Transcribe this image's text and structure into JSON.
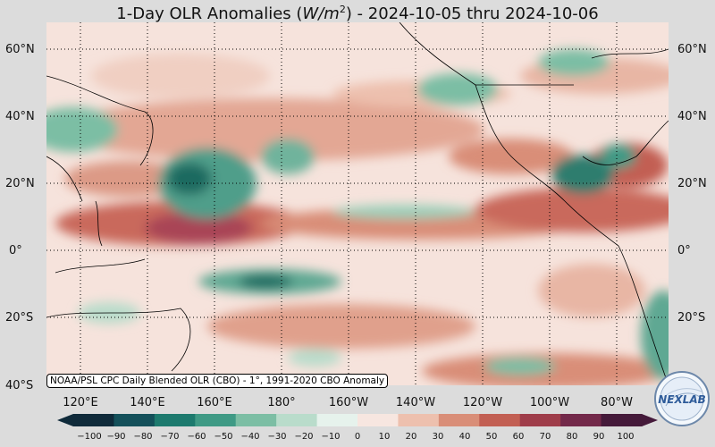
{
  "title": {
    "prefix": "1-Day OLR Anomalies (",
    "unit_base": "W/m",
    "unit_exp": "2",
    "suffix": ") - 2024-10-05 thru 2024-10-06"
  },
  "lat_labels": [
    "60°N",
    "40°N",
    "20°N",
    "0°",
    "20°S",
    "40°S"
  ],
  "lat_labels_right": [
    "60°N",
    "40°N",
    "20°N",
    "0°",
    "20°S"
  ],
  "lon_labels": [
    "120°E",
    "140°E",
    "160°E",
    "180°",
    "160°W",
    "140°W",
    "120°W",
    "100°W",
    "80°W"
  ],
  "credit": "NOAA/PSL CPC Daily Blended OLR (CBO) - 1°, 1991-2020 CBO Anomaly",
  "colorbar": {
    "ticks": [
      "−100",
      "−90",
      "−80",
      "−70",
      "−60",
      "−50",
      "−40",
      "−30",
      "−20",
      "−10",
      "0",
      "10",
      "20",
      "30",
      "40",
      "50",
      "60",
      "70",
      "80",
      "90",
      "100"
    ],
    "colors_negative": [
      "#0f2a3a",
      "#14505a",
      "#1d7a6e",
      "#3f9a85",
      "#7cbea4",
      "#b9dccb",
      "#e6f2ec"
    ],
    "colors_positive": [
      "#f7e6e0",
      "#edc0ae",
      "#d98e78",
      "#c25f53",
      "#9f3d4a",
      "#73294a",
      "#451a3a"
    ]
  },
  "logo": {
    "text": "NEXLAB"
  }
}
